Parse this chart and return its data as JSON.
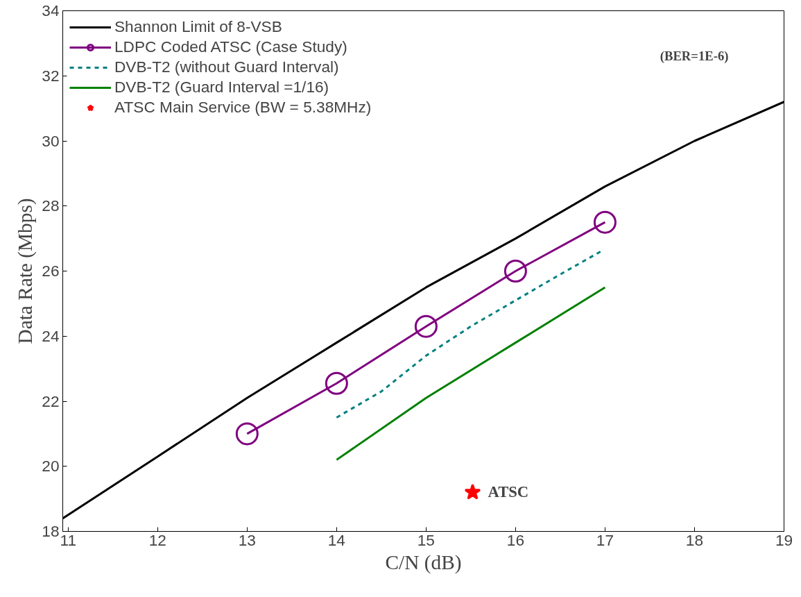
{
  "chart_data": {
    "type": "line",
    "xlabel": "C/N (dB)",
    "ylabel": "Data Rate (Mbps)",
    "xlim": [
      10.94,
      19
    ],
    "ylim": [
      18,
      34
    ],
    "xticks": [
      11,
      12,
      13,
      14,
      15,
      16,
      17,
      18,
      19
    ],
    "yticks": [
      18,
      20,
      22,
      24,
      26,
      28,
      30,
      32,
      34
    ],
    "grid": false,
    "legend": "top left",
    "annotations": [
      "(BER=1E-6)",
      {
        "text": "ATSC",
        "x": 15.52,
        "y": 19.2
      }
    ],
    "series": [
      {
        "name": "Shannon Limit of 8-VSB",
        "color": "#000000",
        "x": [
          10.94,
          12,
          13,
          14,
          15,
          16,
          17,
          18,
          19
        ],
        "values": [
          18.4,
          20.3,
          22.1,
          23.8,
          25.5,
          27.0,
          28.6,
          30.0,
          31.2
        ],
        "marker": "none",
        "line_style": "solid"
      },
      {
        "name": "LDPC Coded ATSC (Case Study)",
        "color": "#800080",
        "x": [
          13,
          14,
          15,
          16,
          17
        ],
        "values": [
          21.0,
          22.55,
          24.3,
          26.0,
          27.5
        ],
        "marker": "circle",
        "line_style": "solid"
      },
      {
        "name": "DVB-T2 (without Guard Interval)",
        "color": "#008080",
        "x": [
          14,
          14.5,
          15,
          15.5,
          16,
          16.5,
          16.95
        ],
        "values": [
          21.5,
          22.3,
          23.4,
          24.3,
          25.1,
          25.9,
          26.6
        ],
        "marker": "none",
        "line_style": "dashed"
      },
      {
        "name": "DVB-T2 (Guard Interval =1/16)",
        "color": "#008000",
        "x": [
          14,
          15,
          16,
          17
        ],
        "values": [
          20.2,
          22.1,
          23.8,
          25.5
        ],
        "marker": "none",
        "line_style": "solid"
      },
      {
        "name": "ATSC Main Service (BW = 5.38MHz)",
        "type": "scatter",
        "color": "#ff0000",
        "x": [
          15.52
        ],
        "values": [
          19.2
        ],
        "marker": "star"
      }
    ]
  }
}
